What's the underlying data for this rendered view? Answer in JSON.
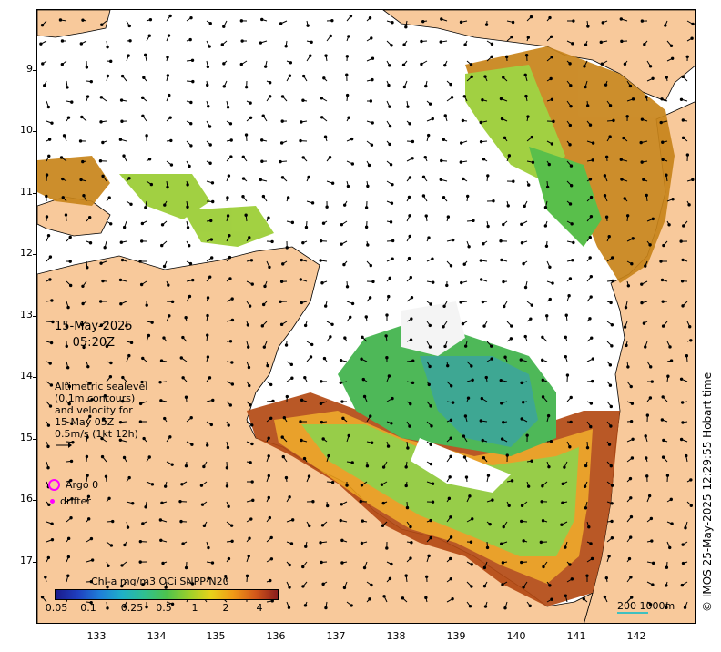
{
  "map": {
    "date": "15-May-2025",
    "time": "05:20Z",
    "altimetry_note": [
      "Altimetric sealevel",
      "(0.1m contours)",
      "and velocity for",
      "15 May 05Z",
      "0.5m/s (1kt 12h)"
    ],
    "legend": {
      "argo_label": "Argo 0",
      "drifter_label": "drifter"
    },
    "credit": "© IMOS 25-May-2025 12:29:55 Hobart time",
    "scale_label": "200  1000m",
    "colors": {
      "land": "#f8c99b",
      "argo": "#ff00ff",
      "water": "#ffffff"
    }
  },
  "axes": {
    "lon_ticks": [
      "133",
      "134",
      "135",
      "136",
      "137",
      "138",
      "139",
      "140",
      "141",
      "142"
    ],
    "lat_ticks": [
      "9",
      "10",
      "11",
      "12",
      "13",
      "14",
      "15",
      "16",
      "17"
    ]
  },
  "colorbar": {
    "title": "Chl-a mg/m3 OCi SNPP N20",
    "ticks": [
      "0.05",
      "0.1",
      "0.25",
      "0.5",
      "1",
      "2",
      "4"
    ]
  }
}
